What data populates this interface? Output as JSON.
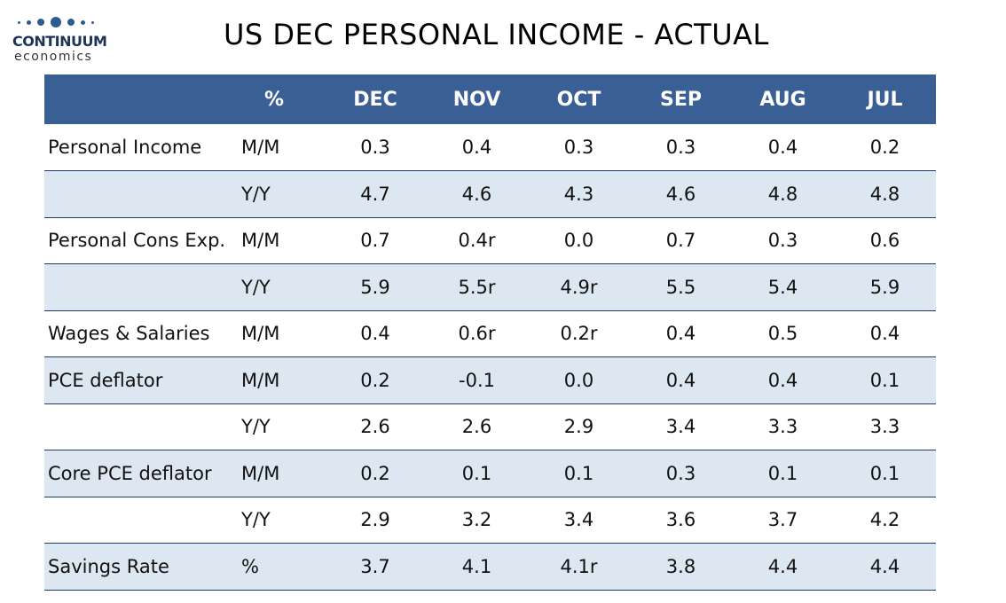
{
  "logo": {
    "name": "CONTINUUM",
    "sub": "economics",
    "dot_color": "#2f5b8f"
  },
  "title": "US DEC PERSONAL INCOME - ACTUAL",
  "colors": {
    "header_bg": "#3a5f95",
    "header_text": "#ffffff",
    "row_shade": "#dde7f2",
    "row_border": "#1f3a66"
  },
  "chart_data": {
    "type": "table",
    "columns": [
      "",
      "%",
      "DEC",
      "NOV",
      "OCT",
      "SEP",
      "AUG",
      "JUL"
    ],
    "rows": [
      {
        "label": "Personal Income",
        "unit": "M/M",
        "values": [
          "0.3",
          "0.4",
          "0.3",
          "0.3",
          "0.4",
          "0.2"
        ],
        "shaded": false
      },
      {
        "label": "",
        "unit": "Y/Y",
        "values": [
          "4.7",
          "4.6",
          "4.3",
          "4.6",
          "4.8",
          "4.8"
        ],
        "shaded": true
      },
      {
        "label": "Personal Cons Exp.",
        "unit": "M/M",
        "values": [
          "0.7",
          "0.4r",
          "0.0",
          "0.7",
          "0.3",
          "0.6"
        ],
        "shaded": false
      },
      {
        "label": "",
        "unit": "Y/Y",
        "values": [
          "5.9",
          "5.5r",
          "4.9r",
          "5.5",
          "5.4",
          "5.9"
        ],
        "shaded": true
      },
      {
        "label": "Wages & Salaries",
        "unit": "M/M",
        "values": [
          "0.4",
          "0.6r",
          "0.2r",
          "0.4",
          "0.5",
          "0.4"
        ],
        "shaded": false
      },
      {
        "label": "PCE deflator",
        "unit": "M/M",
        "values": [
          "0.2",
          "-0.1",
          "0.0",
          "0.4",
          "0.4",
          "0.1"
        ],
        "shaded": true
      },
      {
        "label": "",
        "unit": "Y/Y",
        "values": [
          "2.6",
          "2.6",
          "2.9",
          "3.4",
          "3.3",
          "3.3"
        ],
        "shaded": false
      },
      {
        "label": "Core PCE deflator",
        "unit": "M/M",
        "values": [
          "0.2",
          "0.1",
          "0.1",
          "0.3",
          "0.1",
          "0.1"
        ],
        "shaded": true
      },
      {
        "label": "",
        "unit": "Y/Y",
        "values": [
          "2.9",
          "3.2",
          "3.4",
          "3.6",
          "3.7",
          "4.2"
        ],
        "shaded": false
      },
      {
        "label": "Savings Rate",
        "unit": "%",
        "values": [
          "3.7",
          "4.1",
          "4.1r",
          "3.8",
          "4.4",
          "4.4"
        ],
        "shaded": true
      }
    ]
  }
}
